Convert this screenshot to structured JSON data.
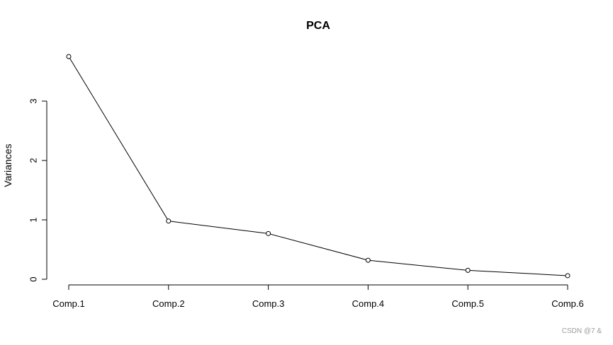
{
  "chart_data": {
    "type": "line",
    "title": "PCA",
    "xlabel": "",
    "ylabel": "Variances",
    "categories": [
      "Comp.1",
      "Comp.2",
      "Comp.3",
      "Comp.4",
      "Comp.5",
      "Comp.6"
    ],
    "series": [
      {
        "values": [
          3.75,
          0.98,
          0.77,
          0.32,
          0.15,
          0.06
        ]
      }
    ],
    "yticks": [
      0,
      1,
      2,
      3
    ],
    "ylim": [
      0,
      3.75
    ],
    "grid": false,
    "marker": "open-circle",
    "line_color": "#000000"
  },
  "watermark": "CSDN @7 &"
}
